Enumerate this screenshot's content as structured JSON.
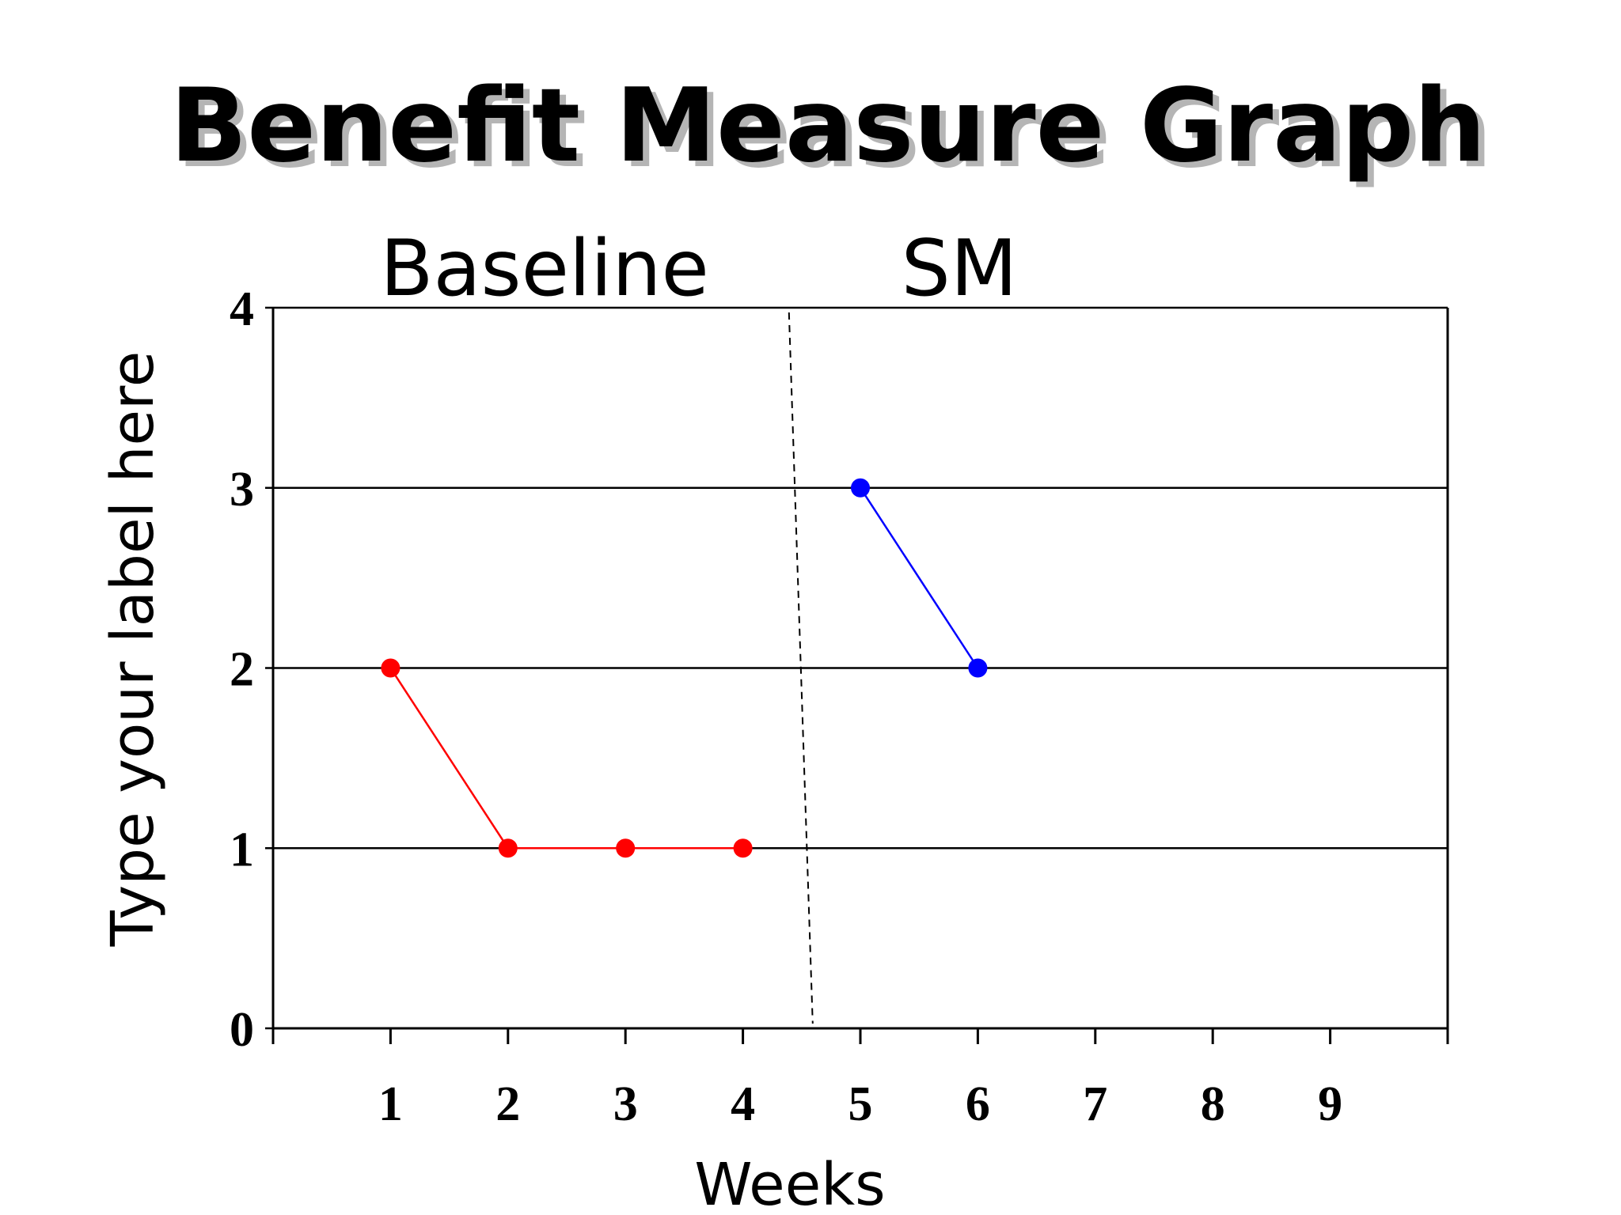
{
  "chart_data": {
    "type": "line",
    "title": "Benefit Measure Graph",
    "xlabel": "Weeks",
    "ylabel": "Type your label here",
    "x_ticks": [
      "1",
      "2",
      "3",
      "4",
      "5",
      "6",
      "7",
      "8",
      "9"
    ],
    "y_ticks": [
      "0",
      "1",
      "2",
      "3",
      "4"
    ],
    "xlim": [
      0,
      10
    ],
    "ylim": [
      0,
      4
    ],
    "grid": "horizontal",
    "phases": [
      {
        "label": "Baseline",
        "x_start": 0,
        "x_end": 4.5
      },
      {
        "label": "SM",
        "x_start": 4.5,
        "x_end": 10
      }
    ],
    "phase_divider_x": 4.5,
    "series": [
      {
        "color": "#ff0000",
        "x": [
          1,
          2,
          3,
          4
        ],
        "y": [
          2,
          1,
          1,
          1
        ]
      },
      {
        "color": "#0000ff",
        "x": [
          5,
          6
        ],
        "y": [
          3,
          2
        ]
      }
    ],
    "legend": "none"
  }
}
